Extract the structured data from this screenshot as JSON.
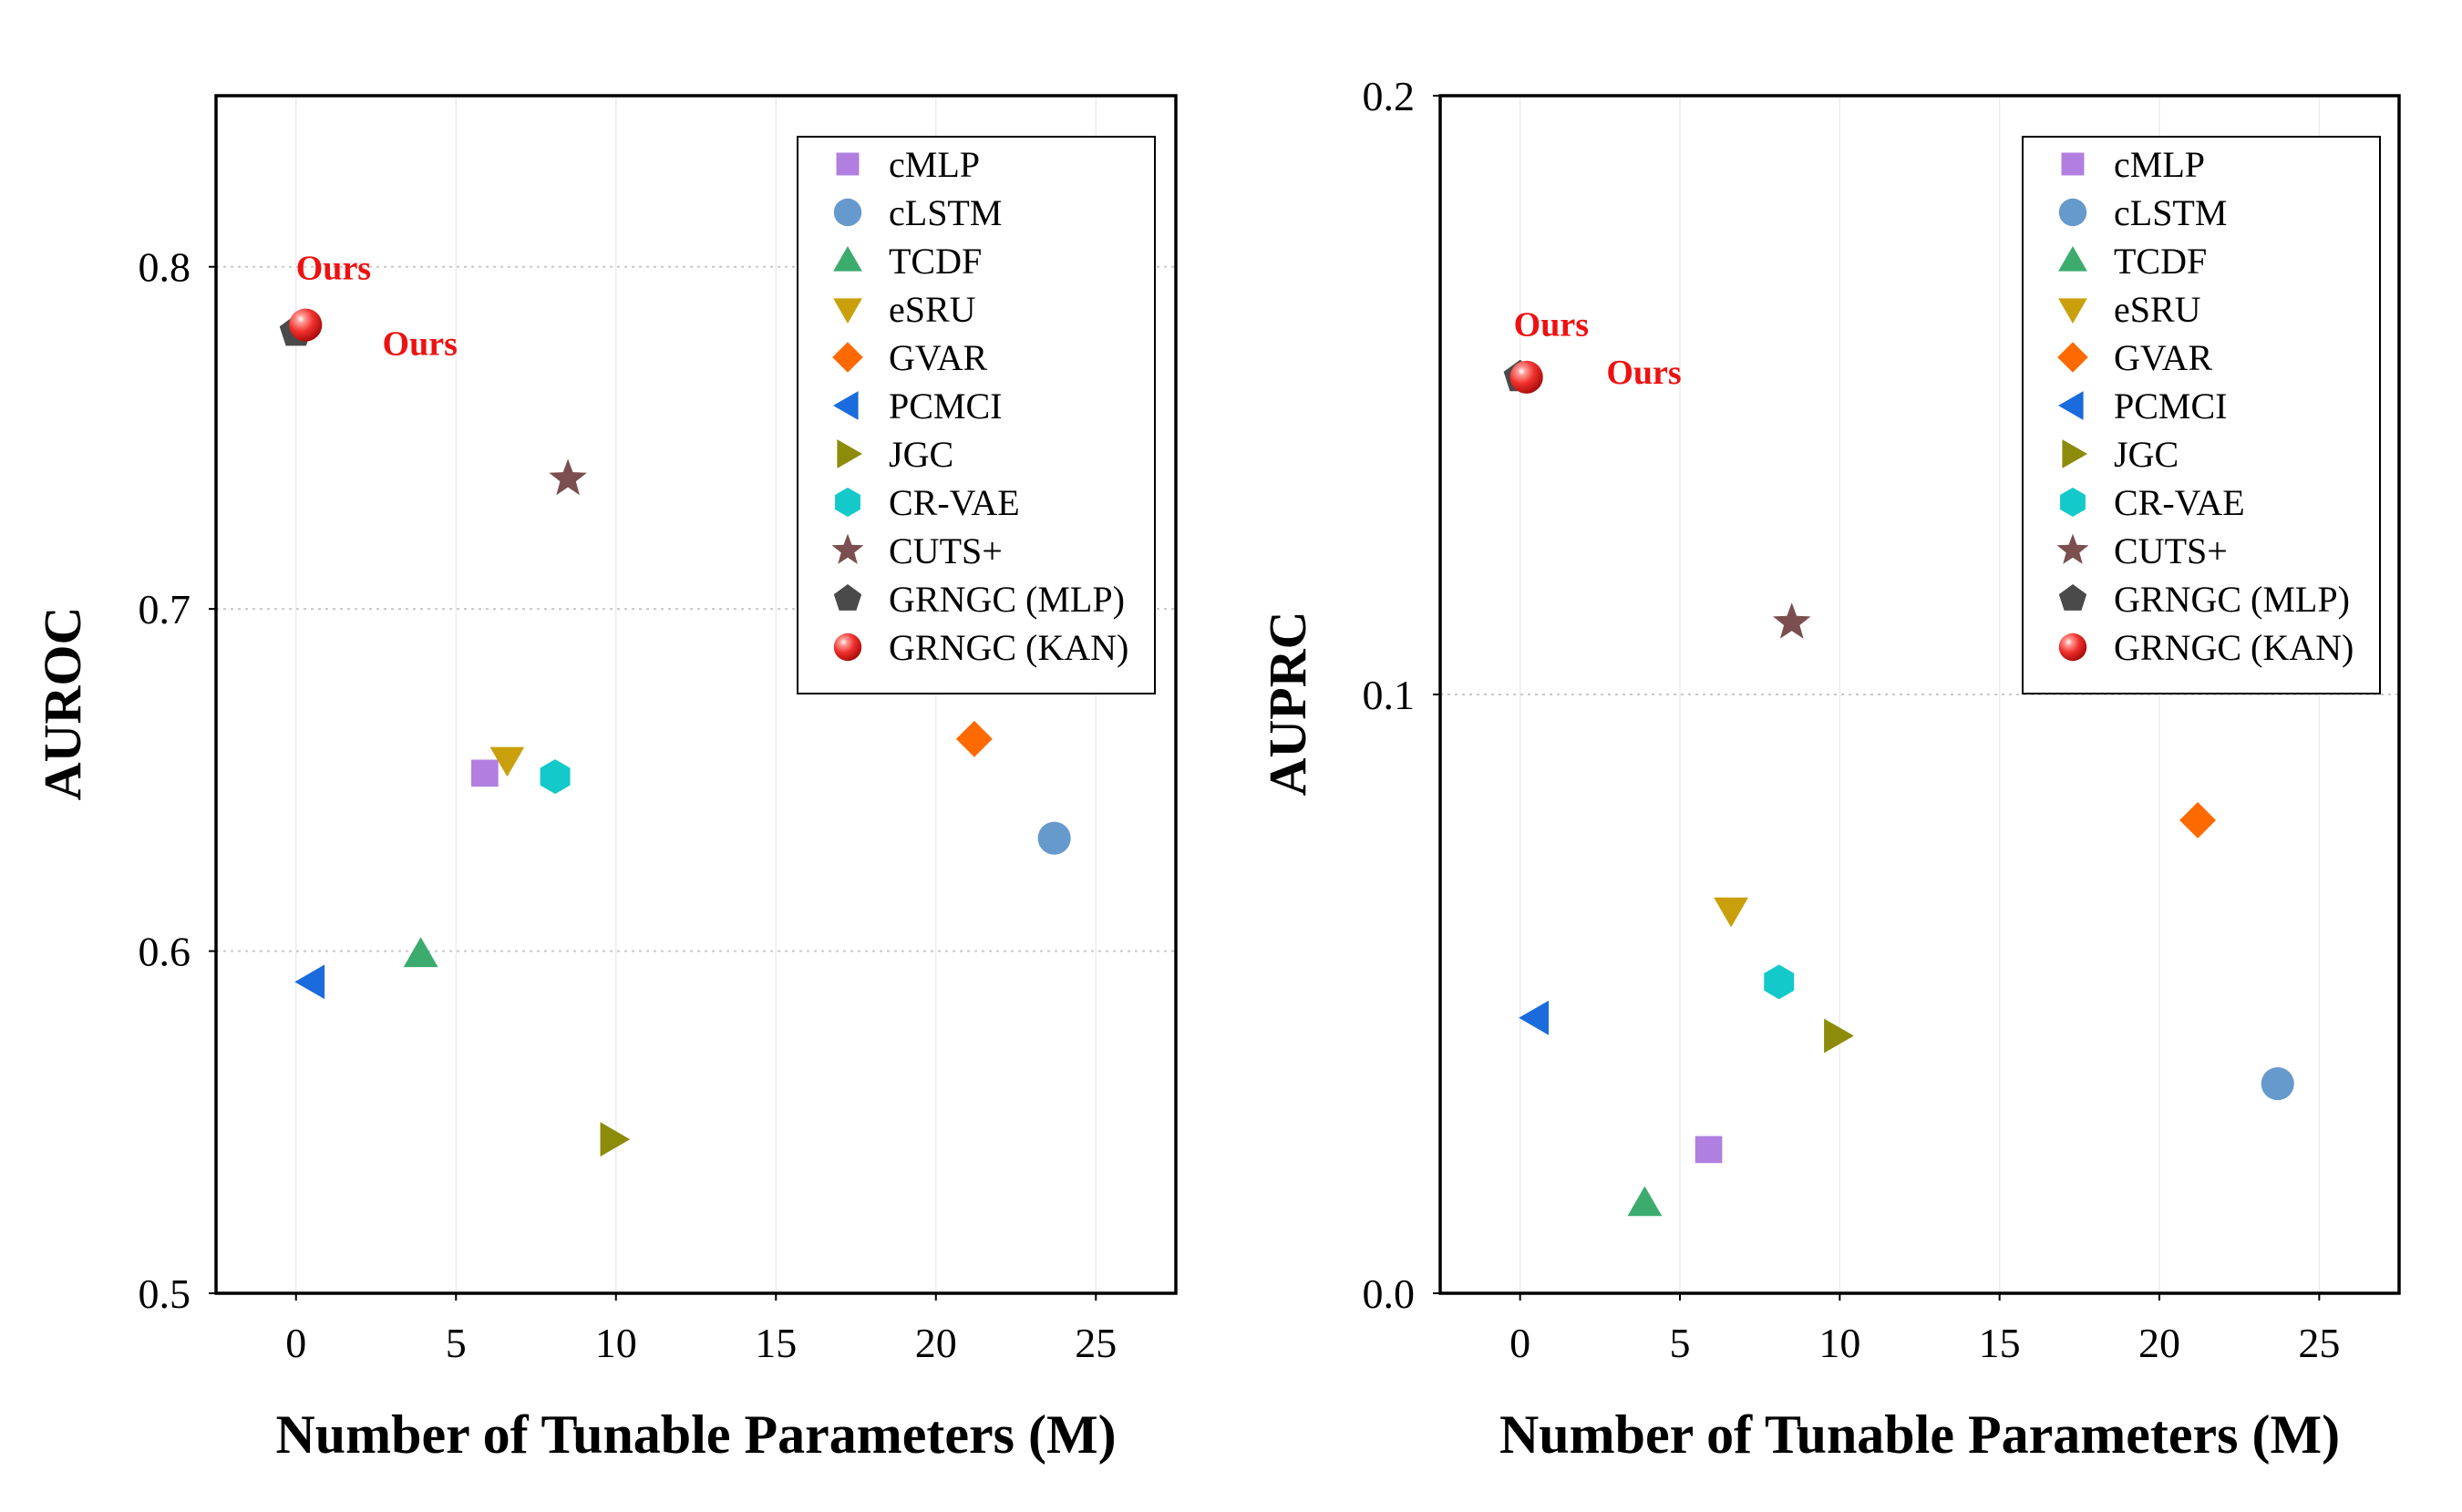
{
  "chart_data": [
    {
      "type": "scatter",
      "title": "",
      "xlabel": "Number of Tunable Parameters (M)",
      "ylabel": "AUROC",
      "xlim": [
        -2.5,
        27.5
      ],
      "ylim": [
        0.5,
        0.85
      ],
      "xticks": [
        0,
        5,
        10,
        15,
        20,
        25
      ],
      "xtick_labels": [
        "0",
        "5",
        "10",
        "15",
        "20",
        "25"
      ],
      "yticks": [
        0.5,
        0.6,
        0.7,
        0.8
      ],
      "ytick_labels": [
        "0.5",
        "0.6",
        "0.7",
        "0.8"
      ],
      "grid": true,
      "legend_position": "top-right",
      "points": [
        {
          "name": "cMLP",
          "x": 5.9,
          "y": 0.652,
          "marker": "square",
          "color": "#b07fe0"
        },
        {
          "name": "cLSTM",
          "x": 23.7,
          "y": 0.633,
          "marker": "circle",
          "color": "#6699cc"
        },
        {
          "name": "TCDF",
          "x": 3.9,
          "y": 0.599,
          "marker": "triangle-up",
          "color": "#3cab6e"
        },
        {
          "name": "eSRU",
          "x": 6.6,
          "y": 0.656,
          "marker": "triangle-down",
          "color": "#c9a00c"
        },
        {
          "name": "GVAR",
          "x": 21.2,
          "y": 0.662,
          "marker": "diamond",
          "color": "#ff6a00"
        },
        {
          "name": "PCMCI",
          "x": 0.5,
          "y": 0.591,
          "marker": "triangle-left",
          "color": "#1a6bdc"
        },
        {
          "name": "JGC",
          "x": 9.9,
          "y": 0.545,
          "marker": "triangle-right",
          "color": "#8c8c0a"
        },
        {
          "name": "CR-VAE",
          "x": 8.1,
          "y": 0.651,
          "marker": "hexagon",
          "color": "#13c9c9"
        },
        {
          "name": "CUTS+",
          "x": 8.5,
          "y": 0.738,
          "marker": "star",
          "color": "#7b4f4f"
        },
        {
          "name": "GRNGC (MLP)",
          "x": 0.0,
          "y": 0.781,
          "marker": "pentagon",
          "color": "#4a4a4a"
        },
        {
          "name": "GRNGC (KAN)",
          "x": 0.3,
          "y": 0.783,
          "marker": "sphere",
          "color": "#f0302c"
        }
      ],
      "annotations": [
        {
          "text": "Ours",
          "x": 0.0,
          "y": 0.8,
          "color": "#ee1111"
        },
        {
          "text": "Ours",
          "x": 2.7,
          "y": 0.778,
          "color": "#ee1111"
        }
      ]
    },
    {
      "type": "scatter",
      "title": "",
      "xlabel": "Number of Tunable Parameters (M)",
      "ylabel": "AUPRC",
      "xlim": [
        -2.5,
        27.5
      ],
      "ylim": [
        0.0,
        0.2
      ],
      "xticks": [
        0,
        5,
        10,
        15,
        20,
        25
      ],
      "xtick_labels": [
        "0",
        "5",
        "10",
        "15",
        "20",
        "25"
      ],
      "yticks": [
        0.0,
        0.1,
        0.2
      ],
      "ytick_labels": [
        "0.0",
        "0.1",
        "0.2"
      ],
      "grid": true,
      "legend_position": "top-right",
      "points": [
        {
          "name": "cMLP",
          "x": 5.9,
          "y": 0.024,
          "marker": "square",
          "color": "#b07fe0"
        },
        {
          "name": "cLSTM",
          "x": 23.7,
          "y": 0.035,
          "marker": "circle",
          "color": "#6699cc"
        },
        {
          "name": "TCDF",
          "x": 3.9,
          "y": 0.015,
          "marker": "triangle-up",
          "color": "#3cab6e"
        },
        {
          "name": "eSRU",
          "x": 6.6,
          "y": 0.064,
          "marker": "triangle-down",
          "color": "#c9a00c"
        },
        {
          "name": "GVAR",
          "x": 21.2,
          "y": 0.079,
          "marker": "diamond",
          "color": "#ff6a00"
        },
        {
          "name": "PCMCI",
          "x": 0.5,
          "y": 0.046,
          "marker": "triangle-left",
          "color": "#1a6bdc"
        },
        {
          "name": "JGC",
          "x": 9.9,
          "y": 0.043,
          "marker": "triangle-right",
          "color": "#8c8c0a"
        },
        {
          "name": "CR-VAE",
          "x": 8.1,
          "y": 0.052,
          "marker": "hexagon",
          "color": "#13c9c9"
        },
        {
          "name": "CUTS+",
          "x": 8.5,
          "y": 0.112,
          "marker": "star",
          "color": "#7b4f4f"
        },
        {
          "name": "GRNGC (MLP)",
          "x": 0.0,
          "y": 0.153,
          "marker": "pentagon",
          "color": "#4a4a4a"
        },
        {
          "name": "GRNGC (KAN)",
          "x": 0.2,
          "y": 0.153,
          "marker": "sphere",
          "color": "#f0302c"
        }
      ],
      "annotations": [
        {
          "text": "Ours",
          "x": -0.2,
          "y": 0.162,
          "color": "#ee1111"
        },
        {
          "text": "Ours",
          "x": 2.7,
          "y": 0.154,
          "color": "#ee1111"
        }
      ]
    }
  ]
}
